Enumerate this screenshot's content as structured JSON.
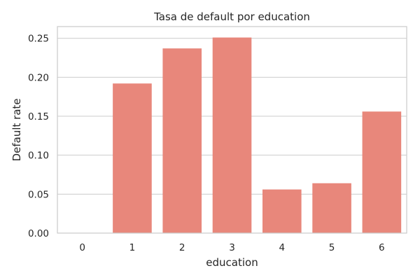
{
  "chart_data": {
    "type": "bar",
    "title": "Tasa de default por education",
    "xlabel": "education",
    "ylabel": "Default rate",
    "categories": [
      "0",
      "1",
      "2",
      "3",
      "4",
      "5",
      "6"
    ],
    "values": [
      0.0,
      0.192,
      0.237,
      0.251,
      0.056,
      0.064,
      0.156
    ],
    "ylim": [
      0,
      0.265
    ],
    "yticks": [
      "0.00",
      "0.05",
      "0.10",
      "0.15",
      "0.20",
      "0.25"
    ],
    "grid": true,
    "bar_color": "#e8877b"
  }
}
